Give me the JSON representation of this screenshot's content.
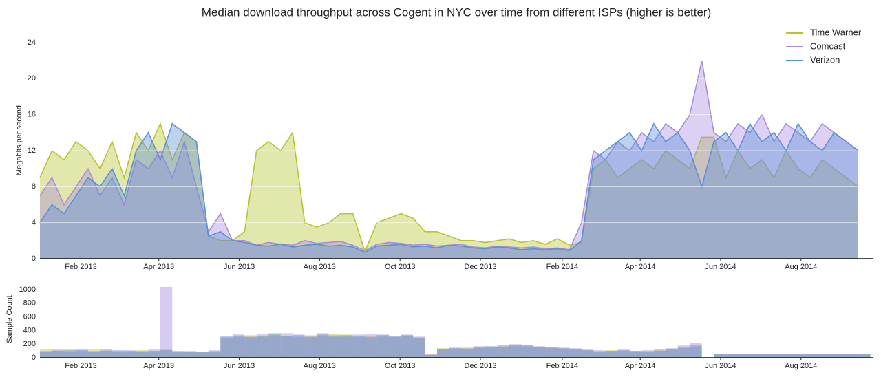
{
  "chart_data": [
    {
      "type": "area",
      "title": "Median download throughput across Cogent in NYC over time from different ISPs (higher is better)",
      "ylabel": "Megabits per second",
      "legend": "upper right",
      "grid": true,
      "x": [
        2013.0,
        2013.025,
        2013.05,
        2013.075,
        2013.1,
        2013.125,
        2013.15,
        2013.175,
        2013.2,
        2013.225,
        2013.25,
        2013.275,
        2013.3,
        2013.325,
        2013.35,
        2013.375,
        2013.4,
        2013.425,
        2013.45,
        2013.475,
        2013.5,
        2013.525,
        2013.55,
        2013.575,
        2013.6,
        2013.625,
        2013.65,
        2013.675,
        2013.7,
        2013.725,
        2013.75,
        2013.775,
        2013.8,
        2013.825,
        2013.85,
        2013.875,
        2013.9,
        2013.925,
        2013.95,
        2013.975,
        2014.0,
        2014.025,
        2014.05,
        2014.075,
        2014.1,
        2014.125,
        2014.15,
        2014.175,
        2014.2,
        2014.225,
        2014.25,
        2014.275,
        2014.3,
        2014.325,
        2014.35,
        2014.375,
        2014.4,
        2014.425,
        2014.45,
        2014.475,
        2014.5,
        2014.525,
        2014.55,
        2014.575,
        2014.6,
        2014.625,
        2014.65,
        2014.675,
        2014.7
      ],
      "xlim": [
        2013.0,
        2014.73
      ],
      "xticks": [
        {
          "value": 2013.085,
          "label": "Feb 2013"
        },
        {
          "value": 2013.247,
          "label": "Apr 2013"
        },
        {
          "value": 2013.414,
          "label": "Jun 2013"
        },
        {
          "value": 2013.581,
          "label": "Aug 2013"
        },
        {
          "value": 2013.748,
          "label": "Oct 2013"
        },
        {
          "value": 2013.915,
          "label": "Dec 2013"
        },
        {
          "value": 2014.085,
          "label": "Feb 2014"
        },
        {
          "value": 2014.247,
          "label": "Apr 2014"
        },
        {
          "value": 2014.414,
          "label": "Jun 2014"
        },
        {
          "value": 2014.581,
          "label": "Aug 2014"
        }
      ],
      "ylim": [
        0,
        24
      ],
      "yticks": [
        0,
        4,
        8,
        12,
        16,
        20,
        24
      ],
      "series": [
        {
          "name": "Time Warner",
          "color": "#b7c42c",
          "values": [
            9,
            12,
            11,
            13,
            12,
            10,
            13,
            9,
            14,
            12,
            15,
            11,
            14,
            13,
            2.5,
            2,
            2,
            3,
            12,
            13,
            12,
            14,
            4,
            3.5,
            4,
            5,
            5,
            0.8,
            4,
            4.5,
            5,
            4.5,
            3,
            3,
            2.5,
            2,
            2,
            1.8,
            2,
            2.2,
            1.8,
            2,
            1.6,
            2.2,
            1.5,
            1.8,
            10,
            11,
            9,
            10,
            11,
            10,
            12,
            11,
            10,
            13.5,
            13.5,
            9,
            12,
            10,
            11,
            9,
            12,
            10,
            9,
            11,
            10,
            9,
            8
          ]
        },
        {
          "name": "Comcast",
          "color": "#a98be0",
          "values": [
            7,
            9,
            6,
            8,
            10,
            7,
            9,
            6,
            11,
            10,
            12,
            9,
            13,
            8,
            3,
            5,
            2,
            2,
            1.5,
            1.8,
            1.6,
            1.5,
            2,
            1.7,
            1.8,
            1.9,
            1.5,
            0.9,
            1.6,
            1.8,
            1.7,
            1.5,
            1.6,
            1.4,
            1.5,
            1.6,
            1.3,
            1.2,
            1.4,
            1.3,
            1.2,
            1.3,
            1.1,
            1.2,
            1.0,
            4,
            12,
            11,
            13,
            12,
            14,
            13,
            15,
            14,
            16,
            22,
            14,
            13,
            15,
            14,
            16,
            13,
            15,
            14,
            13,
            15,
            14,
            13,
            12
          ]
        },
        {
          "name": "Verizon",
          "color": "#5b8fd6",
          "values": [
            4,
            6,
            5,
            7,
            9,
            8,
            10,
            7,
            12,
            14,
            11,
            15,
            14,
            13,
            2.5,
            3,
            2,
            1.8,
            1.5,
            1.4,
            1.6,
            1.3,
            1.5,
            1.6,
            1.4,
            1.5,
            1.3,
            0.7,
            1.4,
            1.5,
            1.6,
            1.3,
            1.4,
            1.2,
            1.5,
            1.4,
            1.2,
            1.1,
            1.3,
            1.2,
            1.0,
            1.1,
            1.0,
            1.1,
            0.9,
            2,
            11,
            12,
            13,
            14,
            12,
            15,
            13,
            14,
            12,
            8,
            13,
            14,
            12,
            15,
            13,
            14,
            12,
            15,
            13,
            12,
            14,
            13,
            12
          ]
        }
      ]
    },
    {
      "type": "bar",
      "ylabel": "Sample Count",
      "x": [
        2013.0,
        2013.025,
        2013.05,
        2013.075,
        2013.1,
        2013.125,
        2013.15,
        2013.175,
        2013.2,
        2013.225,
        2013.25,
        2013.275,
        2013.3,
        2013.325,
        2013.35,
        2013.375,
        2013.4,
        2013.425,
        2013.45,
        2013.475,
        2013.5,
        2013.525,
        2013.55,
        2013.575,
        2013.6,
        2013.625,
        2013.65,
        2013.675,
        2013.7,
        2013.725,
        2013.75,
        2013.775,
        2013.8,
        2013.825,
        2013.85,
        2013.875,
        2013.9,
        2013.925,
        2013.95,
        2013.975,
        2014.0,
        2014.025,
        2014.05,
        2014.075,
        2014.1,
        2014.125,
        2014.15,
        2014.175,
        2014.2,
        2014.225,
        2014.25,
        2014.275,
        2014.3,
        2014.325,
        2014.35,
        2014.375,
        2014.4,
        2014.425,
        2014.45,
        2014.475,
        2014.5,
        2014.525,
        2014.55,
        2014.575,
        2014.6,
        2014.625,
        2014.65,
        2014.675,
        2014.7
      ],
      "xlim": [
        2013.0,
        2014.73
      ],
      "xticks": [
        {
          "value": 2013.085,
          "label": "Feb 2013"
        },
        {
          "value": 2013.247,
          "label": "Apr 2013"
        },
        {
          "value": 2013.414,
          "label": "Jun 2013"
        },
        {
          "value": 2013.581,
          "label": "Aug 2013"
        },
        {
          "value": 2013.748,
          "label": "Oct 2013"
        },
        {
          "value": 2013.915,
          "label": "Dec 2013"
        },
        {
          "value": 2014.085,
          "label": "Feb 2014"
        },
        {
          "value": 2014.247,
          "label": "Apr 2014"
        },
        {
          "value": 2014.414,
          "label": "Jun 2014"
        },
        {
          "value": 2014.581,
          "label": "Aug 2014"
        }
      ],
      "ylim": [
        0,
        1090
      ],
      "yticks": [
        0,
        200,
        400,
        600,
        800,
        1000
      ],
      "series": [
        {
          "name": "Time Warner",
          "color": "#b7c42c",
          "values": [
            120,
            110,
            130,
            100,
            120,
            110,
            100,
            90,
            110,
            100,
            120,
            90,
            80,
            90,
            100,
            280,
            300,
            330,
            320,
            340,
            310,
            300,
            330,
            320,
            350,
            340,
            300,
            320,
            310,
            300,
            320,
            300,
            60,
            140,
            130,
            150,
            140,
            160,
            180,
            170,
            160,
            150,
            140,
            130,
            120,
            110,
            100,
            110,
            100,
            90,
            100,
            110,
            120,
            140,
            160,
            0,
            60,
            55,
            50,
            60,
            55,
            50,
            60,
            55,
            60,
            50,
            55,
            60,
            50
          ]
        },
        {
          "name": "Comcast",
          "color": "#a98be0",
          "values": [
            100,
            120,
            90,
            110,
            100,
            130,
            90,
            110,
            100,
            120,
            1040,
            80,
            100,
            90,
            110,
            300,
            320,
            310,
            350,
            330,
            360,
            340,
            320,
            360,
            330,
            310,
            340,
            350,
            330,
            320,
            340,
            310,
            50,
            130,
            150,
            140,
            170,
            150,
            180,
            200,
            190,
            170,
            160,
            150,
            140,
            120,
            110,
            100,
            120,
            100,
            110,
            130,
            140,
            180,
            220,
            0,
            50,
            60,
            55,
            50,
            60,
            55,
            50,
            60,
            55,
            60,
            55,
            50,
            60
          ]
        },
        {
          "name": "Verizon",
          "color": "#5b8fd6",
          "values": [
            90,
            100,
            110,
            120,
            90,
            100,
            110,
            100,
            90,
            100,
            110,
            100,
            90,
            80,
            90,
            320,
            340,
            300,
            310,
            360,
            320,
            330,
            300,
            340,
            310,
            330,
            320,
            300,
            340,
            310,
            330,
            290,
            40,
            120,
            140,
            130,
            150,
            170,
            160,
            190,
            180,
            160,
            150,
            140,
            130,
            110,
            90,
            100,
            110,
            100,
            90,
            100,
            120,
            150,
            180,
            0,
            55,
            50,
            60,
            55,
            50,
            60,
            55,
            50,
            60,
            55,
            50,
            60,
            55
          ]
        }
      ]
    }
  ]
}
